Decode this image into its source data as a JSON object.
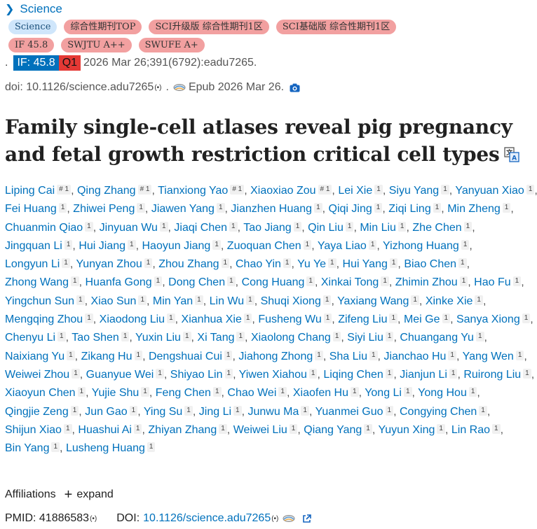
{
  "journal": {
    "name": "Science"
  },
  "badges_row1": [
    "Science",
    "综合性期刊TOP",
    "SCI升级版 综合性期刊1区",
    "SCI基础版 综合性期刊1区"
  ],
  "badges_row2": [
    "IF 45.8",
    "SWJTU A++",
    "SWUFE A+"
  ],
  "citation": {
    "dot": ".",
    "if": "IF: 45.8",
    "quartile": "Q1",
    "text": "2026 Mar 26;391(6792):eadu7265."
  },
  "doi_line": {
    "doi": "doi: 10.1126/science.adu7265",
    "signal": "(•)",
    "dot": ".",
    "epub": "Epub 2026 Mar 26."
  },
  "title": "Family single-cell atlases reveal pig pregnancy and fetal growth restriction critical cell types",
  "authors": [
    {
      "name": "Liping Cai",
      "sup": "# 1"
    },
    {
      "name": "Qing Zhang",
      "sup": "# 1"
    },
    {
      "name": "Tianxiong Yao",
      "sup": "# 1"
    },
    {
      "name": "Xiaoxiao Zou",
      "sup": "# 1"
    },
    {
      "name": "Lei Xie",
      "sup": "1"
    },
    {
      "name": "Siyu Yang",
      "sup": "1"
    },
    {
      "name": "Yanyuan Xiao",
      "sup": "1"
    },
    {
      "name": "Fei Huang",
      "sup": "1"
    },
    {
      "name": "Zhiwei Peng",
      "sup": "1"
    },
    {
      "name": "Jiawen Yang",
      "sup": "1"
    },
    {
      "name": "Jianzhen Huang",
      "sup": "1"
    },
    {
      "name": "Qiqi Jing",
      "sup": "1"
    },
    {
      "name": "Ziqi Ling",
      "sup": "1"
    },
    {
      "name": "Min Zheng",
      "sup": "1"
    },
    {
      "name": "Chuanmin Qiao",
      "sup": "1"
    },
    {
      "name": "Jinyuan Wu",
      "sup": "1"
    },
    {
      "name": "Jiaqi Chen",
      "sup": "1"
    },
    {
      "name": "Tao Jiang",
      "sup": "1"
    },
    {
      "name": "Qin Liu",
      "sup": "1"
    },
    {
      "name": "Min Liu",
      "sup": "1"
    },
    {
      "name": "Zhe Chen",
      "sup": "1"
    },
    {
      "name": "Jingquan Li",
      "sup": "1"
    },
    {
      "name": "Hui Jiang",
      "sup": "1"
    },
    {
      "name": "Haoyun Jiang",
      "sup": "1"
    },
    {
      "name": "Zuoquan Chen",
      "sup": "1"
    },
    {
      "name": "Yaya Liao",
      "sup": "1"
    },
    {
      "name": "Yizhong Huang",
      "sup": "1"
    },
    {
      "name": "Longyun Li",
      "sup": "1"
    },
    {
      "name": "Yunyan Zhou",
      "sup": "1"
    },
    {
      "name": "Zhou Zhang",
      "sup": "1"
    },
    {
      "name": "Chao Yin",
      "sup": "1"
    },
    {
      "name": "Yu Ye",
      "sup": "1"
    },
    {
      "name": "Hui Yang",
      "sup": "1"
    },
    {
      "name": "Biao Chen",
      "sup": "1"
    },
    {
      "name": "Zhong Wang",
      "sup": "1"
    },
    {
      "name": "Huanfa Gong",
      "sup": "1"
    },
    {
      "name": "Dong Chen",
      "sup": "1"
    },
    {
      "name": "Cong Huang",
      "sup": "1"
    },
    {
      "name": "Xinkai Tong",
      "sup": "1"
    },
    {
      "name": "Zhimin Zhou",
      "sup": "1"
    },
    {
      "name": "Hao Fu",
      "sup": "1"
    },
    {
      "name": "Yingchun Sun",
      "sup": "1"
    },
    {
      "name": "Xiao Sun",
      "sup": "1"
    },
    {
      "name": "Min Yan",
      "sup": "1"
    },
    {
      "name": "Lin Wu",
      "sup": "1"
    },
    {
      "name": "Shuqi Xiong",
      "sup": "1"
    },
    {
      "name": "Yaxiang Wang",
      "sup": "1"
    },
    {
      "name": "Xinke Xie",
      "sup": "1"
    },
    {
      "name": "Mengqing Zhou",
      "sup": "1"
    },
    {
      "name": "Xiaodong Liu",
      "sup": "1"
    },
    {
      "name": "Xianhua Xie",
      "sup": "1"
    },
    {
      "name": "Fusheng Wu",
      "sup": "1"
    },
    {
      "name": "Zifeng Liu",
      "sup": "1"
    },
    {
      "name": "Mei Ge",
      "sup": "1"
    },
    {
      "name": "Sanya Xiong",
      "sup": "1"
    },
    {
      "name": "Chenyu Li",
      "sup": "1"
    },
    {
      "name": "Tao Shen",
      "sup": "1"
    },
    {
      "name": "Yuxin Liu",
      "sup": "1"
    },
    {
      "name": "Xi Tang",
      "sup": "1"
    },
    {
      "name": "Xiaolong Chang",
      "sup": "1"
    },
    {
      "name": "Siyi Liu",
      "sup": "1"
    },
    {
      "name": "Chuangang Yu",
      "sup": "1"
    },
    {
      "name": "Naixiang Yu",
      "sup": "1"
    },
    {
      "name": "Zikang Hu",
      "sup": "1"
    },
    {
      "name": "Dengshuai Cui",
      "sup": "1"
    },
    {
      "name": "Jiahong Zhong",
      "sup": "1"
    },
    {
      "name": "Sha Liu",
      "sup": "1"
    },
    {
      "name": "Jianchao Hu",
      "sup": "1"
    },
    {
      "name": "Yang Wen",
      "sup": "1"
    },
    {
      "name": "Weiwei Zhou",
      "sup": "1"
    },
    {
      "name": "Guanyue Wei",
      "sup": "1"
    },
    {
      "name": "Shiyao Lin",
      "sup": "1"
    },
    {
      "name": "Yiwen Xiahou",
      "sup": "1"
    },
    {
      "name": "Liqing Chen",
      "sup": "1"
    },
    {
      "name": "Jianjun Li",
      "sup": "1"
    },
    {
      "name": "Ruirong Liu",
      "sup": "1"
    },
    {
      "name": "Xiaoyun Chen",
      "sup": "1"
    },
    {
      "name": "Yujie Shu",
      "sup": "1"
    },
    {
      "name": "Feng Chen",
      "sup": "1"
    },
    {
      "name": "Chao Wei",
      "sup": "1"
    },
    {
      "name": "Xiaofen Hu",
      "sup": "1"
    },
    {
      "name": "Yong Li",
      "sup": "1"
    },
    {
      "name": "Yong Hou",
      "sup": "1"
    },
    {
      "name": "Qingjie Zeng",
      "sup": "1"
    },
    {
      "name": "Jun Gao",
      "sup": "1"
    },
    {
      "name": "Ying Su",
      "sup": "1"
    },
    {
      "name": "Jing Li",
      "sup": "1"
    },
    {
      "name": "Junwu Ma",
      "sup": "1"
    },
    {
      "name": "Yuanmei Guo",
      "sup": "1"
    },
    {
      "name": "Congying Chen",
      "sup": "1"
    },
    {
      "name": "Shijun Xiao",
      "sup": "1"
    },
    {
      "name": "Huashui Ai",
      "sup": "1"
    },
    {
      "name": "Zhiyan Zhang",
      "sup": "1"
    },
    {
      "name": "Weiwei Liu",
      "sup": "1"
    },
    {
      "name": "Qiang Yang",
      "sup": "1"
    },
    {
      "name": "Yuyun Xing",
      "sup": "1"
    },
    {
      "name": "Lin Rao",
      "sup": "1"
    },
    {
      "name": "Bin Yang",
      "sup": "1"
    },
    {
      "name": "Lusheng Huang",
      "sup": "1"
    }
  ],
  "affiliations": {
    "label": "Affiliations",
    "expand": "expand"
  },
  "ids": {
    "pmid": "PMID: 41886583",
    "doi_label": "DOI:",
    "doi_link": "10.1126/science.adu7265",
    "signal": "(•)"
  },
  "colors": {
    "link": "#0071bc",
    "badge_red": "#f2a0a0",
    "badge_blue": "#cfe6fb",
    "if_box": "#0071bc",
    "q_box": "#e53935"
  }
}
